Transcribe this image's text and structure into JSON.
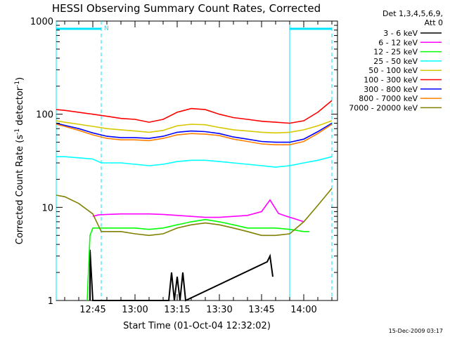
{
  "chart_data": {
    "type": "line",
    "title": "HESSI Observing Summary Count Rates, Corrected",
    "xlabel": "Start Time (01-Oct-04 12:32:02)",
    "ylabel_main": "Corrected Count Rate (s",
    "ylabel_sup1": "-1",
    "ylabel_mid": " detector",
    "ylabel_sup2": "-1",
    "ylabel_end": ")",
    "ylabel": "Corrected Count Rate (s-1 detector-1)",
    "yscale": "log",
    "ylim": [
      1,
      1000
    ],
    "xlim": [
      "12:32",
      "14:12"
    ],
    "x_ticks": [
      "12:45",
      "13:00",
      "13:15",
      "13:30",
      "13:45",
      "14:00"
    ],
    "y_ticks": [
      "1",
      "10",
      "100",
      "1000"
    ],
    "legend_placement": "top-right",
    "legend_header": [
      "Det 1,3,4,5,6,9,",
      "Att 0"
    ],
    "footer_date": "15-Dec-2009 03:17",
    "annotations": [
      {
        "text": "N",
        "x": "12:48"
      }
    ],
    "markers": {
      "dashed_lines_x": [
        "12:48",
        "13:55",
        "14:10"
      ],
      "solid_lines_x": [
        "12:32",
        "13:55"
      ],
      "night_bars": [
        {
          "from": "12:32",
          "to": "12:48"
        },
        {
          "from": "13:55",
          "to": "14:10"
        }
      ]
    },
    "series": [
      {
        "name": "3 - 6 keV",
        "color": "#000000",
        "x": [
          "12:44",
          "12:44",
          "12:45",
          "13:12",
          "13:13",
          "13:14",
          "13:15",
          "13:16",
          "13:17",
          "13:18",
          "13:47",
          "13:48",
          "13:49"
        ],
        "values": [
          1,
          3.5,
          1,
          1,
          2.0,
          1,
          1.8,
          1,
          2.0,
          1,
          2.6,
          3.0,
          1.8
        ]
      },
      {
        "name": "6 - 12 keV",
        "color": "#ff00ff",
        "x": [
          "12:45",
          "12:47",
          "12:50",
          "12:55",
          "13:00",
          "13:05",
          "13:10",
          "13:15",
          "13:20",
          "13:25",
          "13:30",
          "13:35",
          "13:40",
          "13:45",
          "13:48",
          "13:51",
          "13:54",
          "13:57",
          "14:00"
        ],
        "values": [
          8.0,
          8.3,
          8.4,
          8.5,
          8.5,
          8.5,
          8.4,
          8.2,
          8.0,
          7.8,
          7.8,
          8.0,
          8.2,
          9.0,
          12.0,
          8.6,
          8.0,
          7.5,
          7.0
        ]
      },
      {
        "name": "12 - 25 keV",
        "color": "#00ff00",
        "x": [
          "12:43",
          "12:44",
          "12:45",
          "12:50",
          "12:55",
          "13:00",
          "13:05",
          "13:10",
          "13:15",
          "13:20",
          "13:25",
          "13:30",
          "13:35",
          "13:40",
          "13:45",
          "13:50",
          "13:55",
          "14:00",
          "14:02"
        ],
        "values": [
          1,
          5,
          6.0,
          6.0,
          6.0,
          6.0,
          5.8,
          6.0,
          6.5,
          7.0,
          7.4,
          7.0,
          6.5,
          6.0,
          6.0,
          6.0,
          5.8,
          5.5,
          5.5
        ]
      },
      {
        "name": "25 - 50 keV",
        "color": "#00ffff",
        "x": [
          "12:32",
          "12:35",
          "12:40",
          "12:45",
          "12:48",
          "12:55",
          "13:00",
          "13:05",
          "13:10",
          "13:15",
          "13:20",
          "13:25",
          "13:30",
          "13:35",
          "13:40",
          "13:45",
          "13:50",
          "13:55",
          "14:00",
          "14:05",
          "14:10"
        ],
        "values": [
          35,
          35,
          34,
          33,
          30,
          30,
          29,
          28,
          29,
          31,
          32,
          32,
          31,
          30,
          29,
          28,
          27,
          28,
          30,
          32,
          35
        ]
      },
      {
        "name": "50 - 100 keV",
        "color": "#d8c800",
        "x": [
          "12:32",
          "12:35",
          "12:40",
          "12:45",
          "12:50",
          "12:55",
          "13:00",
          "13:05",
          "13:10",
          "13:15",
          "13:20",
          "13:25",
          "13:30",
          "13:35",
          "13:40",
          "13:45",
          "13:50",
          "13:55",
          "14:00",
          "14:05",
          "14:10"
        ],
        "values": [
          85,
          82,
          78,
          74,
          70,
          68,
          66,
          64,
          67,
          75,
          78,
          77,
          72,
          68,
          66,
          64,
          63,
          64,
          68,
          75,
          85
        ]
      },
      {
        "name": "100 - 300 keV",
        "color": "#ff0000",
        "x": [
          "12:32",
          "12:35",
          "12:40",
          "12:45",
          "12:50",
          "12:55",
          "13:00",
          "13:05",
          "13:10",
          "13:15",
          "13:20",
          "13:25",
          "13:30",
          "13:35",
          "13:40",
          "13:45",
          "13:50",
          "13:55",
          "14:00",
          "14:05",
          "14:10"
        ],
        "values": [
          112,
          110,
          105,
          100,
          95,
          90,
          88,
          82,
          88,
          105,
          115,
          112,
          100,
          92,
          88,
          84,
          82,
          80,
          85,
          105,
          140
        ]
      },
      {
        "name": "300 - 800 keV",
        "color": "#0000ff",
        "x": [
          "12:32",
          "12:35",
          "12:40",
          "12:45",
          "12:50",
          "12:55",
          "13:00",
          "13:05",
          "13:10",
          "13:15",
          "13:20",
          "13:25",
          "13:30",
          "13:35",
          "13:40",
          "13:45",
          "13:50",
          "13:55",
          "14:00",
          "14:05",
          "14:10"
        ],
        "values": [
          80,
          76,
          70,
          63,
          58,
          56,
          56,
          55,
          58,
          64,
          66,
          65,
          62,
          57,
          54,
          51,
          50,
          50,
          54,
          65,
          80
        ]
      },
      {
        "name": "800 - 7000 keV",
        "color": "#ff8000",
        "x": [
          "12:32",
          "12:35",
          "12:40",
          "12:45",
          "12:50",
          "12:55",
          "13:00",
          "13:05",
          "13:10",
          "13:15",
          "13:20",
          "13:25",
          "13:30",
          "13:35",
          "13:40",
          "13:45",
          "13:50",
          "13:55",
          "14:00",
          "14:05",
          "14:10"
        ],
        "values": [
          78,
          74,
          67,
          60,
          55,
          53,
          53,
          52,
          55,
          60,
          62,
          61,
          59,
          54,
          51,
          48,
          47,
          47,
          51,
          62,
          78
        ]
      },
      {
        "name": "7000 - 20000 keV",
        "color": "#808000",
        "x": [
          "12:32",
          "12:35",
          "12:40",
          "12:45",
          "12:48",
          "12:55",
          "13:00",
          "13:05",
          "13:10",
          "13:15",
          "13:20",
          "13:25",
          "13:30",
          "13:35",
          "13:40",
          "13:45",
          "13:50",
          "13:55",
          "14:00",
          "14:05",
          "14:10"
        ],
        "values": [
          13.5,
          13,
          11,
          8.5,
          5.5,
          5.5,
          5.2,
          5.0,
          5.2,
          6.0,
          6.5,
          6.8,
          6.5,
          6.0,
          5.5,
          5.0,
          5.0,
          5.2,
          7.0,
          10.5,
          16
        ]
      }
    ]
  }
}
